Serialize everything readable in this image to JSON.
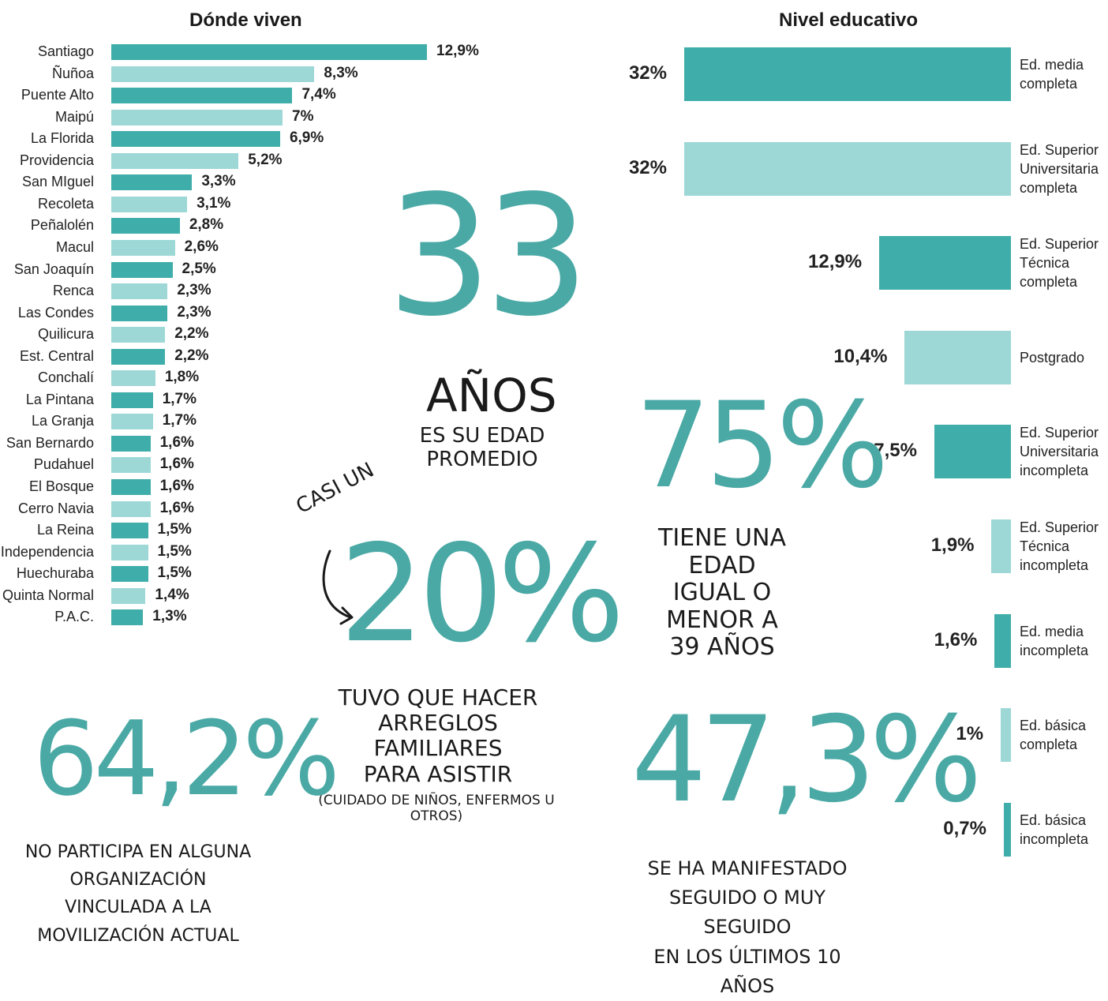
{
  "colors": {
    "teal_dark": "#3fada9",
    "teal_light": "#9dd8d6",
    "accent_text": "#4aa9a5"
  },
  "chart_data": [
    {
      "type": "bar",
      "orientation": "horizontal",
      "title": "Dónde viven",
      "categories": [
        "Santiago",
        "Ñuñoa",
        "Puente Alto",
        "Maipú",
        "La Florida",
        "Providencia",
        "San MIguel",
        "Recoleta",
        "Peñalolén",
        "Macul",
        "San Joaquín",
        "Renca",
        "Las Condes",
        "Quilicura",
        "Est. Central",
        "Conchalí",
        "La Pintana",
        "La Granja",
        "San Bernardo",
        "Pudahuel",
        "El Bosque",
        "Cerro Navia",
        "La Reina",
        "Independencia",
        "Huechuraba",
        "Quinta Normal",
        "P.A.C."
      ],
      "values": [
        12.9,
        8.3,
        7.4,
        7,
        6.9,
        5.2,
        3.3,
        3.1,
        2.8,
        2.6,
        2.5,
        2.3,
        2.3,
        2.2,
        2.2,
        1.8,
        1.7,
        1.7,
        1.6,
        1.6,
        1.6,
        1.6,
        1.5,
        1.5,
        1.5,
        1.4,
        1.3
      ],
      "value_labels": [
        "12,9%",
        "8,3%",
        "7,4%",
        "7%",
        "6,9%",
        "5,2%",
        "3,3%",
        "3,1%",
        "2,8%",
        "2,6%",
        "2,5%",
        "2,3%",
        "2,3%",
        "2,2%",
        "2,2%",
        "1,8%",
        "1,7%",
        "1,7%",
        "1,6%",
        "1,6%",
        "1,6%",
        "1,6%",
        "1,5%",
        "1,5%",
        "1,5%",
        "1,4%",
        "1,3%"
      ],
      "unit": "%",
      "grid": false,
      "bar_colors": "alternating dark/light teal"
    },
    {
      "type": "bar",
      "orientation": "horizontal",
      "direction": "right-aligned",
      "title": "Nivel educativo",
      "categories": [
        [
          "Ed. media",
          "completa"
        ],
        [
          "Ed. Superior",
          "Universitaria",
          "completa"
        ],
        [
          "Ed. Superior",
          "Técnica",
          "completa"
        ],
        [
          "Postgrado"
        ],
        [
          "Ed. Superior",
          "Universitaria",
          "incompleta"
        ],
        [
          "Ed. Superior",
          "Técnica",
          "incompleta"
        ],
        [
          "Ed. media",
          "incompleta"
        ],
        [
          "Ed. básica",
          "completa"
        ],
        [
          "Ed. básica",
          "incompleta"
        ]
      ],
      "values": [
        32,
        32,
        12.9,
        10.4,
        7.5,
        1.9,
        1.6,
        1,
        0.7
      ],
      "value_labels": [
        "32%",
        "32%",
        "12,9%",
        "10,4%",
        "7,5%",
        "1,9%",
        "1,6%",
        "1%",
        "0,7%"
      ],
      "unit": "%",
      "grid": false
    }
  ],
  "stats": {
    "age": {
      "number": "33",
      "unit": "AÑOS",
      "caption": "ES SU EDAD PROMEDIO"
    },
    "under39": {
      "number": "75%",
      "caption_lines": [
        "TIENE UNA EDAD",
        "IGUAL O MENOR A",
        "39 AÑOS"
      ]
    },
    "arrangements": {
      "pre": "CASI UN",
      "number": "20%",
      "caption_lines": [
        "TUVO QUE HACER",
        "ARREGLOS FAMILIARES",
        "PARA ASISTIR"
      ],
      "note": "(CUIDADO DE NIÑOS, ENFERMOS U OTROS)"
    },
    "no_org": {
      "number": "64,2%",
      "caption_lines": [
        "NO PARTICIPA EN ALGUNA",
        "ORGANIZACIÓN VINCULADA A LA",
        "MOVILIZACIÓN ACTUAL"
      ]
    },
    "protests": {
      "number": "47,3%",
      "caption_lines": [
        "SE HA MANIFESTADO",
        "SEGUIDO O MUY SEGUIDO",
        "EN LOS ÚLTIMOS 10 AÑOS"
      ]
    }
  }
}
